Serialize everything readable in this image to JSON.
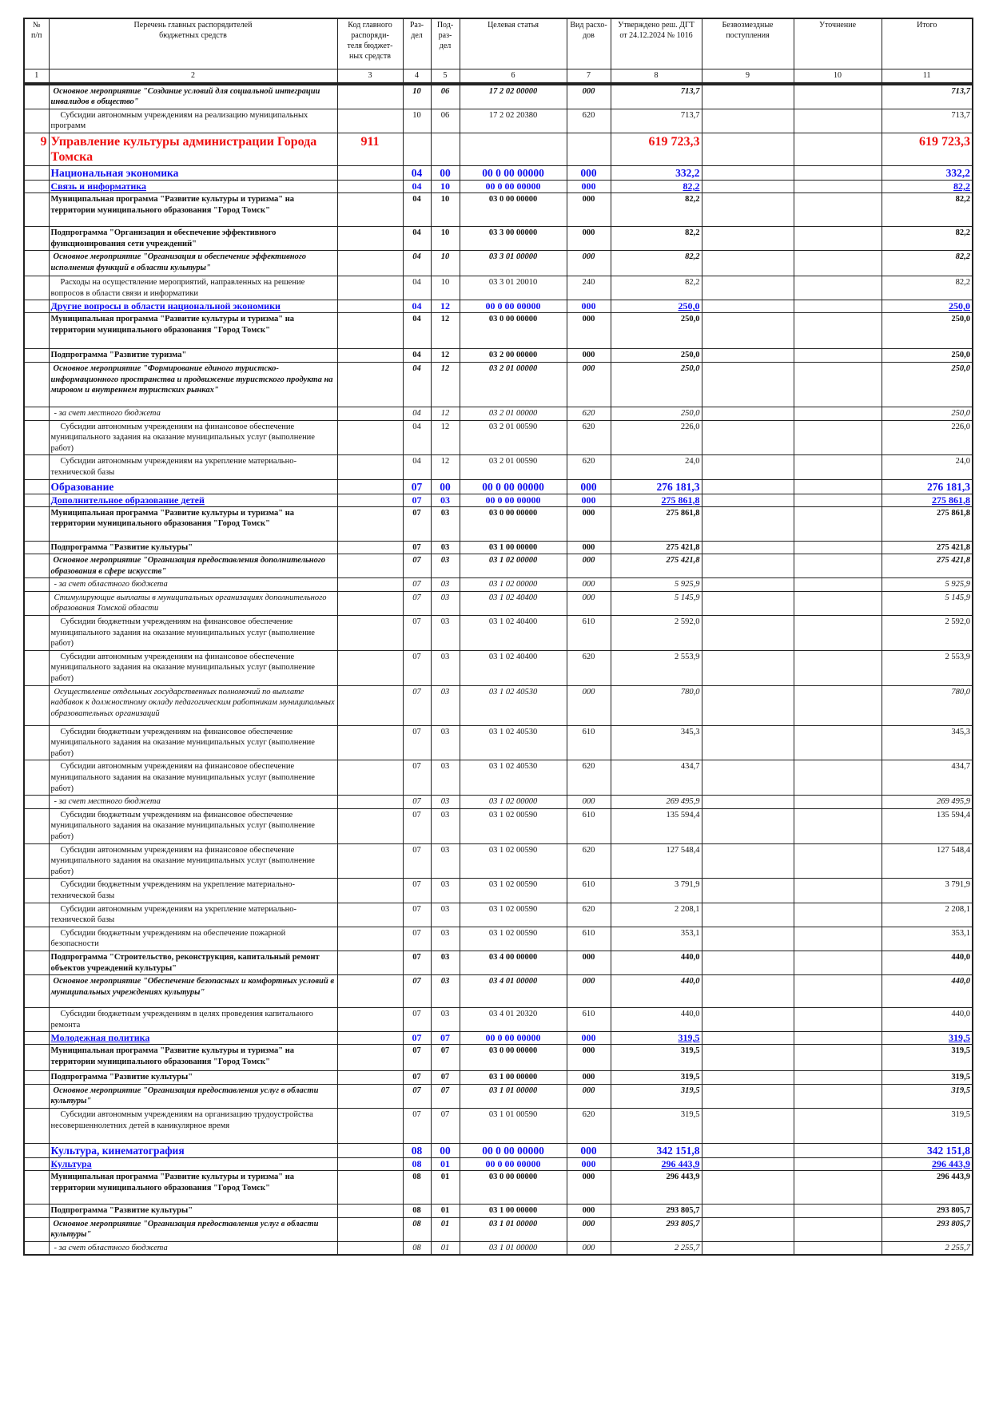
{
  "header": {
    "num": "№\nп/п",
    "name": "Перечень главных распорядителей\nбюджетных средств",
    "code": "Код главного\nраспоряди-\nтеля бюджет-\nных средств",
    "rz": "Раз-\nдел",
    "pr": "Под-\nраз-\nдел",
    "cs": "Целевая статья",
    "vr": "Вид расхо-\nдов",
    "approved": "Утверждено реш. ДГТ\nот 24.12.2024 № 1016",
    "free": "Безвозмездные\nпоступления",
    "adj": "Уточнение",
    "total": "Итого"
  },
  "column_numbers": [
    "1",
    "2",
    "3",
    "4",
    "5",
    "6",
    "7",
    "8",
    "9",
    "10",
    "11"
  ],
  "colors": {
    "section": "#1010ee",
    "department": "#ee1111"
  },
  "rows": [
    {
      "style": "event",
      "name": "Основное мероприятие \"Создание условий для социальной интеграции инвалидов в общество\"",
      "rz": "10",
      "pr": "06",
      "cs": "17 2 02 00000",
      "vr": "000",
      "approved": "713,7",
      "total": "713,7"
    },
    {
      "style": "sub",
      "name": "Субсидии автономным учреждениям на реализацию муниципальных программ",
      "rz": "10",
      "pr": "06",
      "cs": "17 2 02 20380",
      "vr": "620",
      "approved": "713,7",
      "total": "713,7"
    },
    {
      "style": "red",
      "n": "9",
      "name": "Управление культуры администрации Города Томска",
      "code": "911",
      "approved": "619 723,3",
      "total": "619 723,3"
    },
    {
      "style": "blue1",
      "name": "Национальная экономика",
      "rz": "04",
      "pr": "00",
      "cs": "00 0 00 00000",
      "vr": "000",
      "approved": "332,2",
      "total": "332,2"
    },
    {
      "style": "blue2",
      "name": "Связь и информатика",
      "rz": "04",
      "pr": "10",
      "cs": "00 0 00 00000",
      "vr": "000",
      "approved": "82,2",
      "total": "82,2"
    },
    {
      "style": "prog",
      "name": "Муниципальная программа \"Развитие культуры и туризма\" на территории муниципального образования \"Город Томск\"",
      "rz": "04",
      "pr": "10",
      "cs": "03 0 00 00000",
      "vr": "000",
      "approved": "82,2",
      "total": "82,2"
    },
    {
      "style": "prog",
      "name": "Подпрограмма \"Организация и обеспечение эффективного функционирования сети учреждений\"",
      "rz": "04",
      "pr": "10",
      "cs": "03 3 00 00000",
      "vr": "000",
      "approved": "82,2",
      "total": "82,2"
    },
    {
      "style": "event",
      "name": "Основное мероприятие \"Организация и обеспечение эффективного исполнения функций в области культуры\"",
      "rz": "04",
      "pr": "10",
      "cs": "03 3 01 00000",
      "vr": "000",
      "approved": "82,2",
      "total": "82,2"
    },
    {
      "style": "sub",
      "name": "Расходы на осуществление мероприятий, направленных на решение вопросов в области связи и информатики",
      "rz": "04",
      "pr": "10",
      "cs": "03 3 01 20010",
      "vr": "240",
      "approved": "82,2",
      "total": "82,2"
    },
    {
      "style": "blue2",
      "name": "Другие вопросы в области национальной экономики",
      "rz": "04",
      "pr": "12",
      "cs": "00 0 00 00000",
      "vr": "000",
      "approved": "250,0",
      "total": "250,0"
    },
    {
      "style": "prog",
      "name": "Муниципальная программа \"Развитие культуры и туризма\" на территории муниципального образования \"Город Томск\"",
      "rz": "04",
      "pr": "12",
      "cs": "03 0 00 00000",
      "vr": "000",
      "approved": "250,0",
      "total": "250,0"
    },
    {
      "style": "prog",
      "name": "Подпрограмма \"Развитие туризма\"",
      "rz": "04",
      "pr": "12",
      "cs": "03 2 00 00000",
      "vr": "000",
      "approved": "250,0",
      "total": "250,0"
    },
    {
      "style": "event",
      "name": "Основное мероприятие \"Формирование единого туристско-информационного пространства и продвижение туристского продукта на мировом и внутреннем туристских рынках\"",
      "rz": "04",
      "pr": "12",
      "cs": "03 2 01 00000",
      "vr": "000",
      "approved": "250,0",
      "total": "250,0"
    },
    {
      "style": "budget",
      "name": "- за счет местного бюджета",
      "rz": "04",
      "pr": "12",
      "cs": "03 2 01 00000",
      "vr": "620",
      "approved": "250,0",
      "total": "250,0"
    },
    {
      "style": "sub",
      "name": "Субсидии автономным учреждениям на финансовое обеспечение муниципального задания на оказание муниципальных услуг (выполнение работ)",
      "rz": "04",
      "pr": "12",
      "cs": "03 2 01 00590",
      "vr": "620",
      "approved": "226,0",
      "total": "226,0"
    },
    {
      "style": "sub",
      "name": "Субсидии автономным учреждениям на укрепление материально-технической базы",
      "rz": "04",
      "pr": "12",
      "cs": "03 2 01 00590",
      "vr": "620",
      "approved": "24,0",
      "total": "24,0"
    },
    {
      "style": "blue1",
      "name": "Образование",
      "rz": "07",
      "pr": "00",
      "cs": "00 0 00 00000",
      "vr": "000",
      "approved": "276 181,3",
      "total": "276 181,3"
    },
    {
      "style": "blue2",
      "name": "Дополнительное образование детей",
      "rz": "07",
      "pr": "03",
      "cs": "00 0 00 00000",
      "vr": "000",
      "approved": "275 861,8",
      "total": "275 861,8"
    },
    {
      "style": "prog",
      "name": "Муниципальная программа \"Развитие культуры и туризма\" на территории муниципального образования \"Город Томск\"",
      "rz": "07",
      "pr": "03",
      "cs": "03 0 00 00000",
      "vr": "000",
      "approved": "275 861,8",
      "total": "275 861,8"
    },
    {
      "style": "prog",
      "name": "Подпрограмма \"Развитие культуры\"",
      "rz": "07",
      "pr": "03",
      "cs": "03 1 00 00000",
      "vr": "000",
      "approved": "275 421,8",
      "total": "275 421,8"
    },
    {
      "style": "event",
      "name": "Основное мероприятие \"Организация предоставления дополнительного образования в сфере искусств\"",
      "rz": "07",
      "pr": "03",
      "cs": "03 1 02 00000",
      "vr": "000",
      "approved": "275 421,8",
      "total": "275 421,8"
    },
    {
      "style": "budget",
      "name": "- за счет областного бюджета",
      "rz": "07",
      "pr": "03",
      "cs": "03 1 02 00000",
      "vr": "000",
      "approved": "5 925,9",
      "total": "5 925,9"
    },
    {
      "style": "budget",
      "name": "Стимулирующие выплаты в муниципальных организациях дополнительного образования Томской области",
      "rz": "07",
      "pr": "03",
      "cs": "03 1 02 40400",
      "vr": "000",
      "approved": "5 145,9",
      "total": "5 145,9"
    },
    {
      "style": "sub",
      "name": "Субсидии бюджетным учреждениям на финансовое обеспечение муниципального задания на оказание муниципальных услуг (выполнение работ)",
      "rz": "07",
      "pr": "03",
      "cs": "03 1 02 40400",
      "vr": "610",
      "approved": "2 592,0",
      "total": "2 592,0"
    },
    {
      "style": "sub",
      "name": "Субсидии автономным учреждениям на финансовое обеспечение муниципального задания на оказание муниципальных услуг (выполнение работ)",
      "rz": "07",
      "pr": "03",
      "cs": "03 1 02 40400",
      "vr": "620",
      "approved": "2 553,9",
      "total": "2 553,9"
    },
    {
      "style": "budget",
      "name": "Осуществление отдельных государственных полномочий по выплате надбавок к должностному окладу педагогическим работникам муниципальных образовательных организаций",
      "rz": "07",
      "pr": "03",
      "cs": "03 1 02 40530",
      "vr": "000",
      "approved": "780,0",
      "total": "780,0"
    },
    {
      "style": "sub",
      "name": "Субсидии бюджетным учреждениям на финансовое обеспечение муниципального задания на оказание муниципальных услуг (выполнение работ)",
      "rz": "07",
      "pr": "03",
      "cs": "03 1 02 40530",
      "vr": "610",
      "approved": "345,3",
      "total": "345,3"
    },
    {
      "style": "sub",
      "name": "Субсидии автономным учреждениям на финансовое обеспечение муниципального задания на оказание муниципальных услуг (выполнение работ)",
      "rz": "07",
      "pr": "03",
      "cs": "03 1 02 40530",
      "vr": "620",
      "approved": "434,7",
      "total": "434,7"
    },
    {
      "style": "budget",
      "name": "- за счет местного бюджета",
      "rz": "07",
      "pr": "03",
      "cs": "03 1 02 00000",
      "vr": "000",
      "approved": "269 495,9",
      "total": "269 495,9"
    },
    {
      "style": "sub",
      "name": "Субсидии бюджетным учреждениям на финансовое обеспечение муниципального задания на оказание муниципальных услуг (выполнение работ)",
      "rz": "07",
      "pr": "03",
      "cs": "03 1 02 00590",
      "vr": "610",
      "approved": "135 594,4",
      "total": "135 594,4"
    },
    {
      "style": "sub",
      "name": "Субсидии автономным учреждениям на финансовое обеспечение муниципального задания на оказание муниципальных услуг (выполнение работ)",
      "rz": "07",
      "pr": "03",
      "cs": "03 1 02 00590",
      "vr": "620",
      "approved": "127 548,4",
      "total": "127 548,4"
    },
    {
      "style": "sub",
      "name": "Субсидии бюджетным учреждениям на укрепление материально-технической базы",
      "rz": "07",
      "pr": "03",
      "cs": "03 1 02 00590",
      "vr": "610",
      "approved": "3 791,9",
      "total": "3 791,9"
    },
    {
      "style": "sub",
      "name": "Субсидии автономным учреждениям на укрепление материально-технической базы",
      "rz": "07",
      "pr": "03",
      "cs": "03 1 02 00590",
      "vr": "620",
      "approved": "2 208,1",
      "total": "2 208,1"
    },
    {
      "style": "sub",
      "name": "Субсидии бюджетным учреждениям на обеспечение пожарной безопасности",
      "rz": "07",
      "pr": "03",
      "cs": "03 1 02 00590",
      "vr": "610",
      "approved": "353,1",
      "total": "353,1"
    },
    {
      "style": "prog",
      "name": "Подпрограмма \"Строительство, реконструкция, капитальный ремонт объектов учреждений культуры\"",
      "rz": "07",
      "pr": "03",
      "cs": "03 4 00 00000",
      "vr": "000",
      "approved": "440,0",
      "total": "440,0"
    },
    {
      "style": "event",
      "name": "Основное мероприятие \"Обеспечение безопасных и комфортных условий в муниципальных учреждениях культуры\"",
      "rz": "07",
      "pr": "03",
      "cs": "03 4 01 00000",
      "vr": "000",
      "approved": "440,0",
      "total": "440,0"
    },
    {
      "style": "sub",
      "name": "Субсидии бюджетным учреждениям в целях проведения капитального ремонта",
      "rz": "07",
      "pr": "03",
      "cs": "03 4 01 20320",
      "vr": "610",
      "approved": "440,0",
      "total": "440,0"
    },
    {
      "style": "blue2",
      "name": "Молодежная политика",
      "rz": "07",
      "pr": "07",
      "cs": "00 0 00 00000",
      "vr": "000",
      "approved": "319,5",
      "total": "319,5"
    },
    {
      "style": "prog",
      "name": "Муниципальная программа \"Развитие культуры и туризма\" на территории муниципального образования \"Город Томск\"",
      "rz": "07",
      "pr": "07",
      "cs": "03 0 00 00000",
      "vr": "000",
      "approved": "319,5",
      "total": "319,5"
    },
    {
      "style": "prog",
      "name": "Подпрограмма \"Развитие культуры\"",
      "rz": "07",
      "pr": "07",
      "cs": "03 1 00 00000",
      "vr": "000",
      "approved": "319,5",
      "total": "319,5"
    },
    {
      "style": "event",
      "name": "Основное мероприятие \"Организация предоставления услуг в области культуры\"",
      "rz": "07",
      "pr": "07",
      "cs": "03 1 01 00000",
      "vr": "000",
      "approved": "319,5",
      "total": "319,5"
    },
    {
      "style": "sub",
      "name": "Субсидии автономным учреждениям на организацию трудоустройства несовершеннолетних детей в каникулярное время",
      "rz": "07",
      "pr": "07",
      "cs": "03 1 01 00590",
      "vr": "620",
      "approved": "319,5",
      "total": "319,5"
    },
    {
      "style": "blue1",
      "name": "Культура, кинематография",
      "rz": "08",
      "pr": "00",
      "cs": "00 0 00 00000",
      "vr": "000",
      "approved": "342 151,8",
      "total": "342 151,8"
    },
    {
      "style": "blue2",
      "name": "Культура",
      "rz": "08",
      "pr": "01",
      "cs": "00 0 00 00000",
      "vr": "000",
      "approved": "296 443,9",
      "total": "296 443,9"
    },
    {
      "style": "prog",
      "name": "Муниципальная программа \"Развитие культуры и туризма\" на территории муниципального образования \"Город Томск\"",
      "rz": "08",
      "pr": "01",
      "cs": "03 0 00 00000",
      "vr": "000",
      "approved": "296 443,9",
      "total": "296 443,9"
    },
    {
      "style": "prog",
      "name": "Подпрограмма \"Развитие культуры\"",
      "rz": "08",
      "pr": "01",
      "cs": "03 1 00 00000",
      "vr": "000",
      "approved": "293 805,7",
      "total": "293 805,7"
    },
    {
      "style": "event",
      "name": "Основное мероприятие \"Организация предоставления услуг в области культуры\"",
      "rz": "08",
      "pr": "01",
      "cs": "03 1 01 00000",
      "vr": "000",
      "approved": "293 805,7",
      "total": "293 805,7"
    },
    {
      "style": "budget",
      "name": "- за счет областного бюджета",
      "rz": "08",
      "pr": "01",
      "cs": "03 1 01 00000",
      "vr": "000",
      "approved": "2 255,7",
      "total": "2 255,7"
    }
  ]
}
